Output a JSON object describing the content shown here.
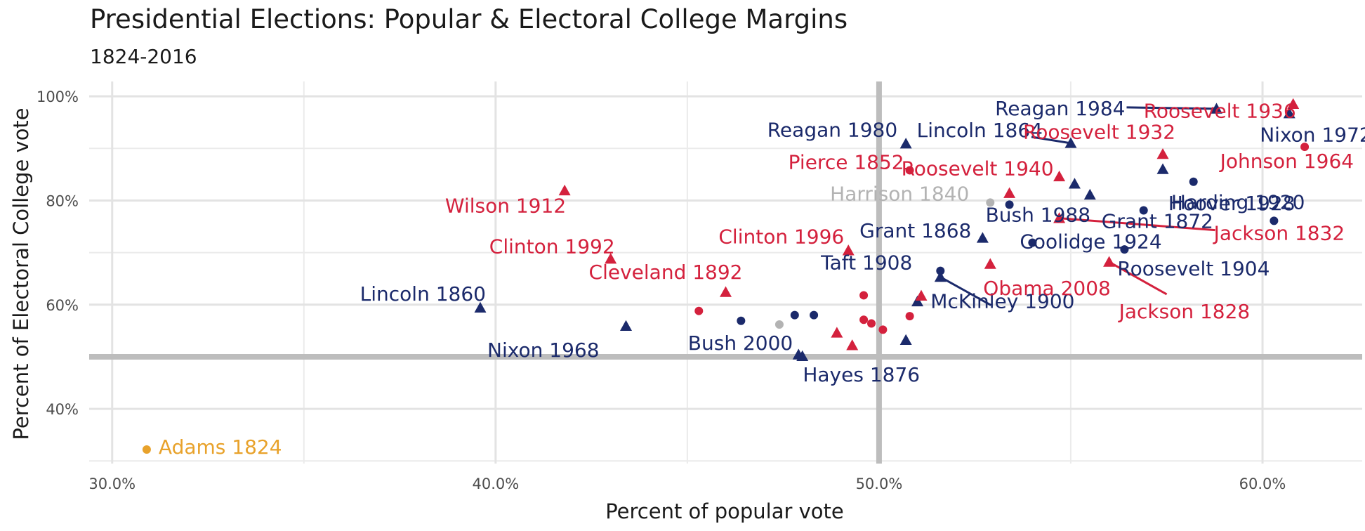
{
  "chart_data": {
    "type": "scatter",
    "title": "Presidential Elections: Popular & Electoral College Margins",
    "subtitle": "1824-2016",
    "xlabel": "Percent of popular vote",
    "ylabel": "Percent of Electoral College vote",
    "xlim": [
      29.4,
      62.6
    ],
    "ylim": [
      29.5,
      101.5
    ],
    "x_ticks": [
      30,
      40,
      50,
      60
    ],
    "x_tick_labels": [
      "30.0%",
      "40.0%",
      "50.0%",
      "60.0%"
    ],
    "y_ticks": [
      40,
      60,
      80,
      100
    ],
    "y_tick_labels": [
      "40%",
      "60%",
      "80%",
      "100%"
    ],
    "reference_lines": {
      "x": 50,
      "y": 50
    },
    "grid": true,
    "colors": {
      "Republican": "#1b2a6b",
      "Democratic": "#d4213d",
      "Whig": "#b3b3b3",
      "Democratic-Republican": "#e8a22b"
    },
    "points": [
      {
        "label": "Adams 1824",
        "x": 30.9,
        "y": 32.2,
        "party": "Democratic-Republican",
        "shape": "circle"
      },
      {
        "label": "Lincoln 1860",
        "x": 39.6,
        "y": 59.4,
        "party": "Republican",
        "shape": "triangle"
      },
      {
        "label": "Wilson 1912",
        "x": 41.8,
        "y": 81.9,
        "party": "Democratic",
        "shape": "triangle"
      },
      {
        "label": "Clinton 1992",
        "x": 43.0,
        "y": 68.8,
        "party": "Democratic",
        "shape": "triangle"
      },
      {
        "label": "Nixon 1968",
        "x": 43.4,
        "y": 55.9,
        "party": "Republican",
        "shape": "triangle"
      },
      {
        "label": "",
        "x": 45.3,
        "y": 58.8,
        "party": "Democratic",
        "shape": "circle"
      },
      {
        "label": "Cleveland 1892",
        "x": 46.0,
        "y": 62.4,
        "party": "Democratic",
        "shape": "triangle"
      },
      {
        "label": "",
        "x": 46.4,
        "y": 56.9,
        "party": "Republican",
        "shape": "circle"
      },
      {
        "label": "",
        "x": 47.4,
        "y": 56.2,
        "party": "Whig",
        "shape": "circle"
      },
      {
        "label": "Bush 2000",
        "x": 47.9,
        "y": 50.4,
        "party": "Republican",
        "shape": "triangle"
      },
      {
        "label": "",
        "x": 47.8,
        "y": 58.0,
        "party": "Republican",
        "shape": "circle"
      },
      {
        "label": "",
        "x": 48.3,
        "y": 58.0,
        "party": "Republican",
        "shape": "circle"
      },
      {
        "label": "",
        "x": 48.9,
        "y": 54.6,
        "party": "Democratic",
        "shape": "triangle"
      },
      {
        "label": "Hayes 1876",
        "x": 48.0,
        "y": 50.1,
        "party": "Republican",
        "shape": "triangle"
      },
      {
        "label": "Clinton 1996",
        "x": 49.2,
        "y": 70.4,
        "party": "Democratic",
        "shape": "triangle"
      },
      {
        "label": "",
        "x": 49.3,
        "y": 52.2,
        "party": "Democratic",
        "shape": "triangle"
      },
      {
        "label": "",
        "x": 49.6,
        "y": 61.8,
        "party": "Democratic",
        "shape": "circle"
      },
      {
        "label": "",
        "x": 49.6,
        "y": 57.1,
        "party": "Democratic",
        "shape": "circle"
      },
      {
        "label": "",
        "x": 49.8,
        "y": 56.4,
        "party": "Democratic",
        "shape": "circle"
      },
      {
        "label": "",
        "x": 50.1,
        "y": 55.2,
        "party": "Democratic",
        "shape": "circle"
      },
      {
        "label": "Reagan 1980",
        "x": 50.7,
        "y": 90.9,
        "party": "Republican",
        "shape": "triangle"
      },
      {
        "label": "Pierce 1852",
        "x": 50.8,
        "y": 85.8,
        "party": "Democratic",
        "shape": "circle"
      },
      {
        "label": "",
        "x": 50.7,
        "y": 53.2,
        "party": "Republican",
        "shape": "triangle"
      },
      {
        "label": "",
        "x": 50.8,
        "y": 57.8,
        "party": "Democratic",
        "shape": "circle"
      },
      {
        "label": "",
        "x": 51.0,
        "y": 60.6,
        "party": "Republican",
        "shape": "triangle"
      },
      {
        "label": "",
        "x": 51.1,
        "y": 61.7,
        "party": "Democratic",
        "shape": "triangle"
      },
      {
        "label": "McKinley 1900",
        "x": 51.6,
        "y": 65.3,
        "party": "Republican",
        "shape": "triangle"
      },
      {
        "label": "Taft 1908",
        "x": 51.6,
        "y": 66.5,
        "party": "Republican",
        "shape": "circle"
      },
      {
        "label": "Grant 1868",
        "x": 52.7,
        "y": 72.8,
        "party": "Republican",
        "shape": "triangle"
      },
      {
        "label": "Harrison 1840",
        "x": 52.9,
        "y": 79.6,
        "party": "Whig",
        "shape": "circle"
      },
      {
        "label": "Obama 2008",
        "x": 52.9,
        "y": 67.8,
        "party": "Democratic",
        "shape": "triangle"
      },
      {
        "label": "Bush 1988",
        "x": 53.4,
        "y": 79.2,
        "party": "Republican",
        "shape": "circle"
      },
      {
        "label": "",
        "x": 53.4,
        "y": 81.4,
        "party": "Democratic",
        "shape": "triangle"
      },
      {
        "label": "Coolidge 1924",
        "x": 54.0,
        "y": 71.9,
        "party": "Republican",
        "shape": "circle"
      },
      {
        "label": "Roosevelt 1940",
        "x": 54.7,
        "y": 84.6,
        "party": "Democratic",
        "shape": "triangle"
      },
      {
        "label": "Jackson 1832",
        "x": 54.7,
        "y": 76.6,
        "party": "Democratic",
        "shape": "triangle"
      },
      {
        "label": "Lincoln 1864",
        "x": 55.0,
        "y": 91.0,
        "party": "Republican",
        "shape": "triangle"
      },
      {
        "label": "",
        "x": 55.1,
        "y": 83.2,
        "party": "Republican",
        "shape": "triangle"
      },
      {
        "label": "",
        "x": 55.5,
        "y": 81.1,
        "party": "Republican",
        "shape": "triangle"
      },
      {
        "label": "Jackson 1828",
        "x": 56.0,
        "y": 68.2,
        "party": "Democratic",
        "shape": "triangle"
      },
      {
        "label": "Roosevelt 1904",
        "x": 56.4,
        "y": 70.6,
        "party": "Republican",
        "shape": "circle"
      },
      {
        "label": "Grant 1872",
        "x": 56.9,
        "y": 78.1,
        "party": "Republican",
        "shape": "circle"
      },
      {
        "label": "Roosevelt 1932",
        "x": 57.4,
        "y": 88.9,
        "party": "Democratic",
        "shape": "triangle"
      },
      {
        "label": "",
        "x": 57.4,
        "y": 86.0,
        "party": "Republican",
        "shape": "triangle"
      },
      {
        "label": "Hoover 1928",
        "x": 58.2,
        "y": 83.6,
        "party": "Republican",
        "shape": "circle"
      },
      {
        "label": "Reagan 1984",
        "x": 58.8,
        "y": 97.6,
        "party": "Republican",
        "shape": "triangle"
      },
      {
        "label": "Harding 1920",
        "x": 60.3,
        "y": 76.1,
        "party": "Republican",
        "shape": "circle"
      },
      {
        "label": "Roosevelt 1936",
        "x": 60.8,
        "y": 98.5,
        "party": "Democratic",
        "shape": "triangle"
      },
      {
        "label": "Nixon 1972",
        "x": 60.7,
        "y": 96.7,
        "party": "Republican",
        "shape": "triangle"
      },
      {
        "label": "Johnson 1964",
        "x": 61.1,
        "y": 90.3,
        "party": "Democratic",
        "shape": "circle"
      }
    ]
  }
}
